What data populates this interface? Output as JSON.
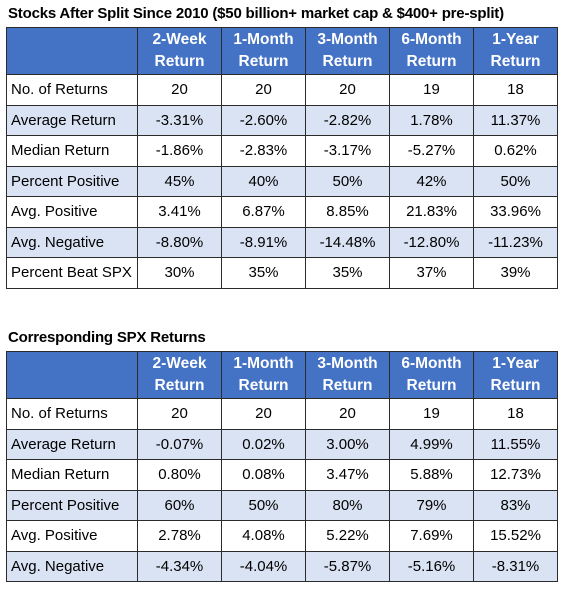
{
  "table1": {
    "title": "Stocks After Split Since 2010 ($50 billion+ market cap & $400+ pre-split)",
    "headers": [
      [
        "2-Week",
        "Return"
      ],
      [
        "1-Month",
        "Return"
      ],
      [
        "3-Month",
        "Return"
      ],
      [
        "6-Month",
        "Return"
      ],
      [
        "1-Year",
        "Return"
      ]
    ],
    "rows": [
      {
        "label": "No. of Returns",
        "values": [
          "20",
          "20",
          "20",
          "19",
          "18"
        ]
      },
      {
        "label": "Average Return",
        "values": [
          "-3.31%",
          "-2.60%",
          "-2.82%",
          "1.78%",
          "11.37%"
        ]
      },
      {
        "label": "Median Return",
        "values": [
          "-1.86%",
          "-2.83%",
          "-3.17%",
          "-5.27%",
          "0.62%"
        ]
      },
      {
        "label": "Percent Positive",
        "values": [
          "45%",
          "40%",
          "50%",
          "42%",
          "50%"
        ]
      },
      {
        "label": "Avg. Positive",
        "values": [
          "3.41%",
          "6.87%",
          "8.85%",
          "21.83%",
          "33.96%"
        ]
      },
      {
        "label": "Avg. Negative",
        "values": [
          "-8.80%",
          "-8.91%",
          "-14.48%",
          "-12.80%",
          "-11.23%"
        ]
      },
      {
        "label": "Percent Beat SPX",
        "values": [
          "30%",
          "35%",
          "35%",
          "37%",
          "39%"
        ]
      }
    ]
  },
  "table2": {
    "title": "Corresponding SPX Returns",
    "headers": [
      [
        "2-Week",
        "Return"
      ],
      [
        "1-Month",
        "Return"
      ],
      [
        "3-Month",
        "Return"
      ],
      [
        "6-Month",
        "Return"
      ],
      [
        "1-Year",
        "Return"
      ]
    ],
    "rows": [
      {
        "label": "No. of Returns",
        "values": [
          "20",
          "20",
          "20",
          "19",
          "18"
        ]
      },
      {
        "label": "Average Return",
        "values": [
          "-0.07%",
          "0.02%",
          "3.00%",
          "4.99%",
          "11.55%"
        ]
      },
      {
        "label": "Median Return",
        "values": [
          "0.80%",
          "0.08%",
          "3.47%",
          "5.88%",
          "12.73%"
        ]
      },
      {
        "label": "Percent Positive",
        "values": [
          "60%",
          "50%",
          "80%",
          "79%",
          "83%"
        ]
      },
      {
        "label": "Avg. Positive",
        "values": [
          "2.78%",
          "4.08%",
          "5.22%",
          "7.69%",
          "15.52%"
        ]
      },
      {
        "label": "Avg. Negative",
        "values": [
          "-4.34%",
          "-4.04%",
          "-5.87%",
          "-5.16%",
          "-8.31%"
        ]
      }
    ]
  },
  "colors": {
    "header_bg": "#4472c4",
    "header_text": "#ffffff",
    "band_bg": "#dae3f3",
    "plain_bg": "#ffffff",
    "border": "#2b2b2b"
  }
}
